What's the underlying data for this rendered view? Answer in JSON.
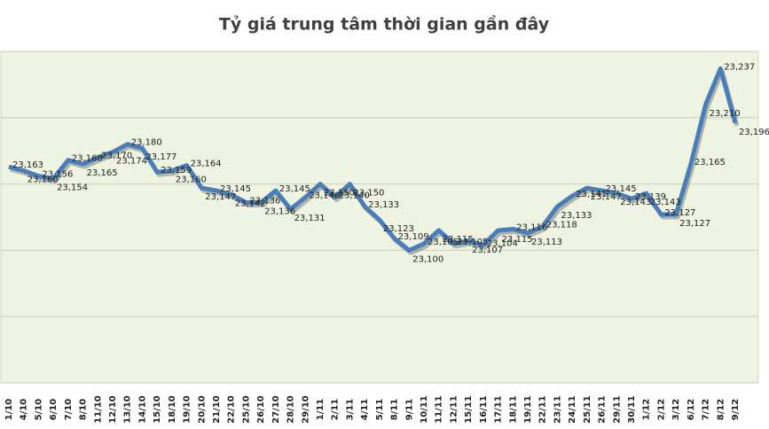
{
  "chart_data": {
    "type": "line",
    "title": "Tỷ giá trung tâm thời gian gần đây",
    "categories": [
      "1/10",
      "4/10",
      "5/10",
      "6/10",
      "7/10",
      "8/10",
      "11/10",
      "12/10",
      "13/10",
      "14/10",
      "15/10",
      "18/10",
      "19/10",
      "20/10",
      "21/10",
      "22/10",
      "25/10",
      "26/10",
      "27/10",
      "28/10",
      "29/10",
      "1/11",
      "2/11",
      "3/11",
      "4/11",
      "5/11",
      "8/11",
      "9/11",
      "10/11",
      "11/11",
      "12/11",
      "15/11",
      "16/11",
      "17/11",
      "18/11",
      "19/11",
      "22/11",
      "23/11",
      "24/11",
      "25/11",
      "26/11",
      "29/11",
      "30/11",
      "1/12",
      "2/12",
      "3/12",
      "6/12",
      "7/12",
      "8/12",
      "9/12"
    ],
    "series": [
      {
        "color": "#4a7ebb",
        "values": [
          23163,
          23160,
          23156,
          23154,
          23168,
          23165,
          23170,
          23174,
          23180,
          23177,
          23159,
          23160,
          23164,
          23147,
          23145,
          23142,
          23136,
          23136,
          23145,
          23131,
          23140,
          23150,
          23140,
          23150,
          23133,
          23123,
          23109,
          23100,
          23105,
          23115,
          23105,
          23107,
          23104,
          23115,
          23116,
          23113,
          23118,
          23133,
          23141,
          23147,
          23145,
          23143,
          23139,
          23143,
          23127,
          23127,
          23165,
          23210,
          23237,
          23196
        ],
        "value_labels": [
          "23,163",
          "23,160",
          "23,156",
          "23,154",
          "23,168",
          "23,165",
          "23,170",
          "23,174",
          "23,180",
          "23,177",
          "23,159",
          "23,160",
          "23,164",
          "23,147",
          "23,145",
          "23,142",
          "23,136",
          "23,136",
          "23,145",
          "23,131",
          "23,140",
          "23,150",
          "23,140",
          "23,150",
          "23,133",
          "23,123",
          "23,109",
          "23,100",
          "23,105",
          "23,115",
          "23,105",
          "23,107",
          "23,104",
          "23,115",
          "23,116",
          "23,113",
          "23,118",
          "23,133",
          "23,141",
          "23,147",
          "23,145",
          "23,143",
          "23,139",
          "23,143",
          "23,127",
          "23,127",
          "23,165",
          "23,210",
          "23,237",
          "23,196"
        ]
      }
    ],
    "ylim": [
      23000,
      23250
    ],
    "yticks": [
      23000,
      23050,
      23100,
      23150,
      23200,
      23250
    ],
    "grid": true,
    "background": "#eef3e2"
  }
}
